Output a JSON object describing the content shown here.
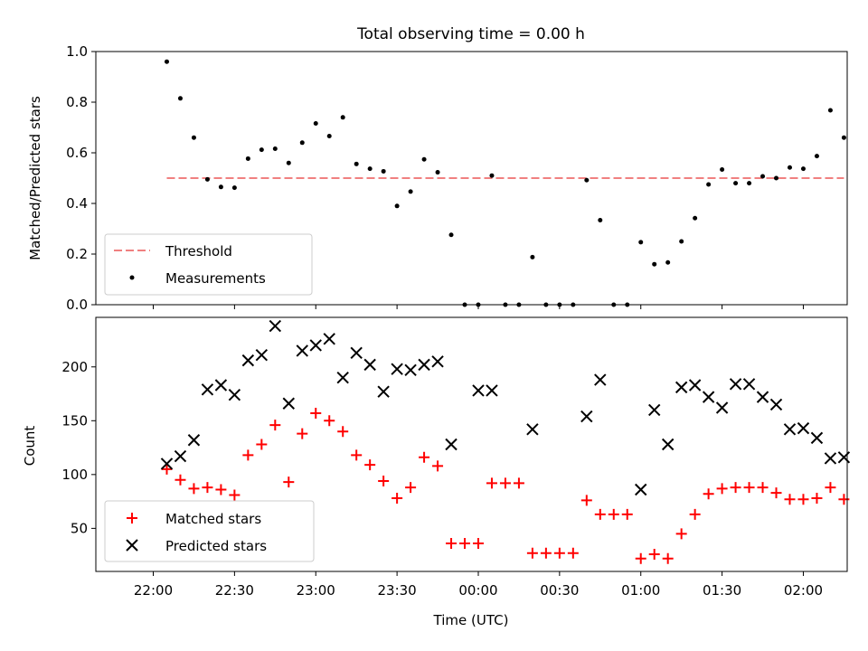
{
  "chart_data": [
    {
      "type": "scatter",
      "title": "Total observing time = 0.00 h",
      "ylabel": "Matched/Predicted stars",
      "xlabel": "",
      "ylim": [
        0,
        1.0
      ],
      "yticks": [
        "0.0",
        "0.2",
        "0.4",
        "0.6",
        "0.8",
        "1.0"
      ],
      "ytick_values": [
        0,
        0.2,
        0.4,
        0.6,
        0.8,
        1.0
      ],
      "x_range_minutes_from_22_00": [
        -21.2,
        256.2
      ],
      "threshold": {
        "name": "Threshold",
        "value": 0.5,
        "x_start_minutes": 5,
        "x_end_minutes": 255,
        "color": "#f08080",
        "style": "dashed"
      },
      "series": [
        {
          "name": "Measurements",
          "color": "#000000",
          "marker": "dot",
          "x_minutes": [
            5,
            10,
            15,
            20,
            25,
            30,
            35,
            40,
            45,
            50,
            55,
            60,
            65,
            70,
            75,
            80,
            85,
            90,
            95,
            100,
            105,
            110,
            115,
            120,
            125,
            130,
            135,
            140,
            145,
            150,
            155,
            160,
            165,
            170,
            175,
            180,
            185,
            190,
            195,
            200,
            205,
            210,
            215,
            220,
            225,
            230,
            235,
            240,
            245,
            250,
            255
          ],
          "values": [
            0.96,
            0.815,
            0.66,
            0.495,
            0.465,
            0.462,
            0.577,
            0.612,
            0.616,
            0.56,
            0.64,
            0.716,
            0.666,
            0.74,
            0.556,
            0.537,
            0.527,
            0.39,
            0.447,
            0.574,
            0.523,
            0.276,
            0.0,
            0.0,
            0.51,
            0.0,
            0.0,
            0.188,
            0.0,
            0.0,
            0.0,
            0.492,
            0.334,
            0.0,
            0.0,
            0.247,
            0.16,
            0.167,
            0.25,
            0.342,
            0.475,
            0.534,
            0.48,
            0.48,
            0.507,
            0.5,
            0.542,
            0.537,
            0.587,
            0.768,
            0.66
          ]
        }
      ],
      "legend": [
        "Threshold",
        "Measurements"
      ],
      "legend_position": "lower-left",
      "grid": false
    },
    {
      "type": "scatter",
      "title": "",
      "xlabel": "Time (UTC)",
      "ylabel": "Count",
      "ylim": [
        10,
        246
      ],
      "yticks": [
        "50",
        "100",
        "150",
        "200"
      ],
      "ytick_values": [
        50,
        100,
        150,
        200
      ],
      "xticks": [
        "22:00",
        "22:30",
        "23:00",
        "23:30",
        "00:00",
        "00:30",
        "01:00",
        "01:30",
        "02:00"
      ],
      "xtick_minutes": [
        0,
        30,
        60,
        90,
        120,
        150,
        180,
        210,
        240
      ],
      "x_range_minutes_from_22_00": [
        -21.2,
        256.2
      ],
      "series": [
        {
          "name": "Matched stars",
          "color": "#ff0000",
          "marker": "plus",
          "x_minutes": [
            5,
            10,
            15,
            20,
            25,
            30,
            35,
            40,
            45,
            50,
            55,
            60,
            65,
            70,
            75,
            80,
            85,
            90,
            95,
            100,
            105,
            110,
            115,
            120,
            125,
            130,
            135,
            140,
            145,
            150,
            155,
            160,
            165,
            170,
            175,
            180,
            185,
            190,
            195,
            200,
            205,
            210,
            215,
            220,
            225,
            230,
            235,
            240,
            245,
            250,
            255
          ],
          "values": [
            105,
            95,
            87,
            88,
            86,
            81,
            118,
            128,
            146,
            93,
            138,
            157,
            150,
            140,
            118,
            109,
            94,
            78,
            88,
            116,
            108,
            36,
            36,
            36,
            92,
            92,
            92,
            27,
            27,
            27,
            27,
            76,
            63,
            63,
            63,
            22,
            26,
            22,
            45,
            63,
            82,
            87,
            88,
            88,
            88,
            83,
            77,
            77,
            78,
            88,
            77
          ]
        },
        {
          "name": "Predicted stars",
          "color": "#000000",
          "marker": "x",
          "x_minutes": [
            5,
            10,
            15,
            20,
            25,
            30,
            35,
            40,
            45,
            50,
            55,
            60,
            65,
            70,
            75,
            80,
            85,
            90,
            95,
            100,
            105,
            110,
            120,
            125,
            140,
            160,
            165,
            180,
            185,
            190,
            195,
            200,
            205,
            210,
            215,
            220,
            225,
            230,
            235,
            240,
            245,
            250,
            255
          ],
          "values": [
            110,
            117,
            132,
            179,
            183,
            174,
            206,
            211,
            238,
            166,
            215,
            220,
            226,
            190,
            213,
            202,
            177,
            198,
            197,
            202,
            205,
            128,
            178,
            178,
            142,
            154,
            188,
            86,
            160,
            128,
            181,
            183,
            172,
            162,
            184,
            184,
            172,
            165,
            142,
            143,
            134,
            115,
            116
          ]
        }
      ],
      "legend": [
        "Matched stars",
        "Predicted stars"
      ],
      "legend_position": "lower-left",
      "grid": false
    }
  ]
}
